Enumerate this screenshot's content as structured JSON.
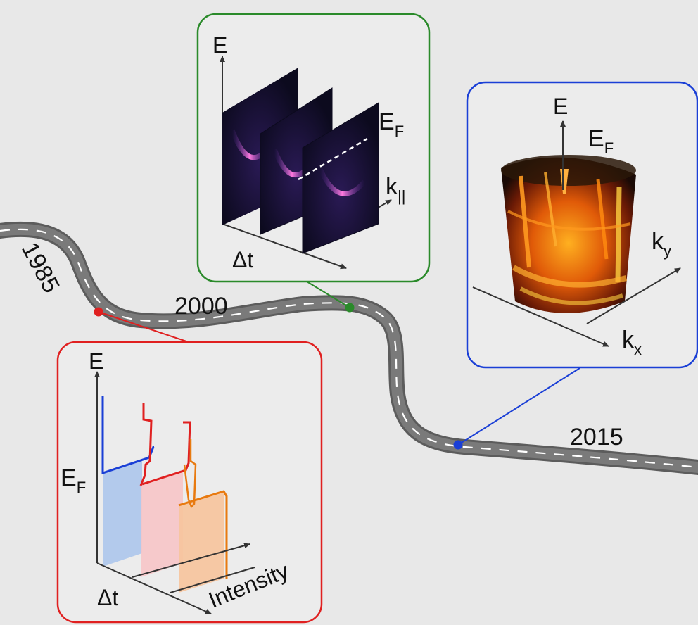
{
  "timeline": {
    "years": [
      "1985",
      "2000",
      "2015"
    ]
  },
  "colors": {
    "era1": "#e02020",
    "era2": "#2a8a2a",
    "era3": "#1a3fd6",
    "road": "#6a6a6a",
    "background": "#e8e8e8"
  },
  "panel_2000": {
    "axis_energy": "E",
    "fermi_main": "E",
    "fermi_sub": "F",
    "axis_momentum_main": "k",
    "axis_momentum_sub": "||",
    "axis_delay": "Δt"
  },
  "panel_2015": {
    "axis_energy": "E",
    "fermi_main": "E",
    "fermi_sub": "F",
    "axis_ky_main": "k",
    "axis_ky_sub": "y",
    "axis_kx_main": "k",
    "axis_kx_sub": "x"
  },
  "panel_1985": {
    "axis_energy": "E",
    "fermi_main": "E",
    "fermi_sub": "F",
    "axis_delay": "Δt",
    "axis_intensity": "Intensity"
  }
}
